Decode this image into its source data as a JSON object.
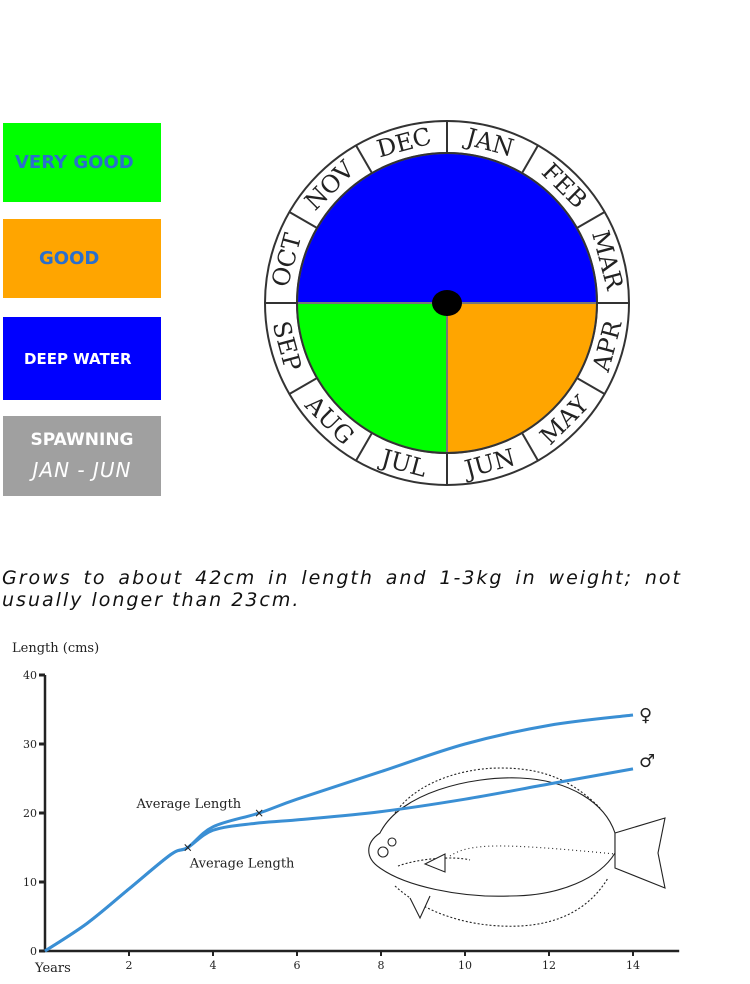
{
  "legend": [
    {
      "label": "VERY GOOD",
      "color": "#00ff00"
    },
    {
      "label": "GOOD",
      "color": "#ffa500"
    },
    {
      "label": "DEEP WATER",
      "color": "#0000ff"
    },
    {
      "label": "SPAWNING",
      "sub": "JAN - JUN",
      "color": "#a0a0a0"
    }
  ],
  "description": "Grows to about 42cm in length and 1-3kg in weight; not usually longer than 23cm.",
  "chart_data": [
    {
      "type": "pie",
      "title": "",
      "months": [
        "JAN",
        "FEB",
        "MAR",
        "APR",
        "MAY",
        "JUN",
        "JUL",
        "AUG",
        "SEP",
        "OCT",
        "NOV",
        "DEC"
      ],
      "segments": [
        {
          "label": "DEEP WATER",
          "months": [
            "OCT",
            "NOV",
            "DEC",
            "JAN",
            "FEB",
            "MAR"
          ],
          "color": "#0000ff"
        },
        {
          "label": "GOOD",
          "months": [
            "APR",
            "MAY",
            "JUN"
          ],
          "color": "#ffa500"
        },
        {
          "label": "VERY GOOD",
          "months": [
            "JUL",
            "AUG",
            "SEP"
          ],
          "color": "#00ff00"
        }
      ]
    },
    {
      "type": "line",
      "title": "",
      "ylabel": "Length (cms)",
      "xlabel": "Years",
      "xlim": [
        0,
        15
      ],
      "ylim": [
        0,
        40
      ],
      "xticks": [
        2,
        4,
        6,
        8,
        10,
        12,
        14
      ],
      "yticks": [
        0,
        10,
        20,
        30,
        40
      ],
      "series": [
        {
          "name": "♀",
          "points": [
            [
              0,
              0
            ],
            [
              1,
              4
            ],
            [
              2,
              9
            ],
            [
              3,
              14
            ],
            [
              3.4,
              15
            ],
            [
              4,
              18
            ],
            [
              5.1,
              20
            ],
            [
              6,
              22
            ],
            [
              8,
              26
            ],
            [
              10,
              30
            ],
            [
              12,
              32.7
            ],
            [
              14,
              34.2
            ]
          ]
        },
        {
          "name": "♂",
          "points": [
            [
              0,
              0
            ],
            [
              1,
              4
            ],
            [
              2,
              9
            ],
            [
              3,
              14
            ],
            [
              3.4,
              15
            ],
            [
              4,
              17.5
            ],
            [
              5,
              18.5
            ],
            [
              6,
              19
            ],
            [
              8,
              20.2
            ],
            [
              10,
              22
            ],
            [
              12,
              24.2
            ],
            [
              14,
              26.4
            ]
          ]
        }
      ],
      "annotations": [
        {
          "text": "Average Length",
          "x": 5.1,
          "y": 20
        },
        {
          "text": "Average Length",
          "x": 3.4,
          "y": 15
        }
      ]
    }
  ]
}
